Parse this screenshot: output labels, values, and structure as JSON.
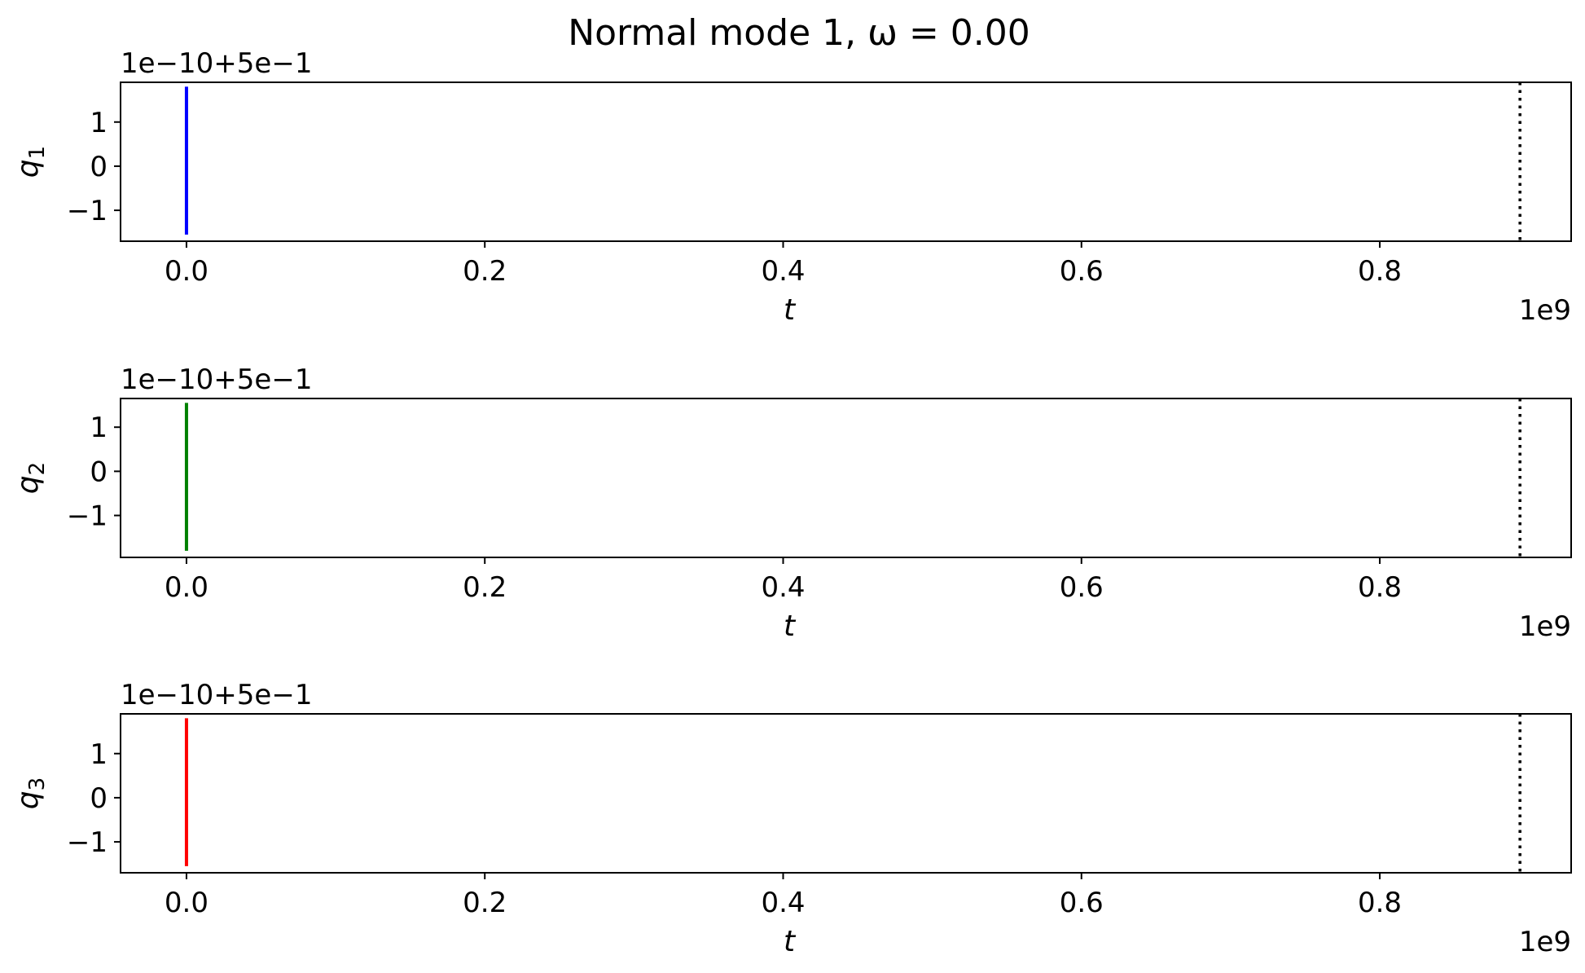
{
  "figure": {
    "title": "Normal mode 1, ω = 0.00"
  },
  "chart_data": [
    {
      "type": "line",
      "ylabel": "q",
      "ylabel_sub": "1",
      "xlabel": "t",
      "x_offset_label": "1e9",
      "y_offset_label": "1e−10+5e−1",
      "xlim": [
        -0.0442,
        0.9283
      ],
      "ylim": [
        -1.7,
        1.9
      ],
      "xticks": [
        0.0,
        0.2,
        0.4,
        0.6,
        0.8
      ],
      "xtick_labels": [
        "0.0",
        "0.2",
        "0.4",
        "0.6",
        "0.8"
      ],
      "yticks": [
        -1,
        0,
        1
      ],
      "ytick_labels": [
        "−1",
        "0",
        "1"
      ],
      "series": [
        {
          "color": "#0000ff",
          "x": [
            0.0,
            0.0
          ],
          "y": [
            -1.55,
            1.8
          ]
        }
      ],
      "vline": {
        "x": 0.894,
        "style": "dotted",
        "color": "#000000"
      }
    },
    {
      "type": "line",
      "ylabel": "q",
      "ylabel_sub": "2",
      "xlabel": "t",
      "x_offset_label": "1e9",
      "y_offset_label": "1e−10+5e−1",
      "xlim": [
        -0.0442,
        0.9283
      ],
      "ylim": [
        -1.95,
        1.65
      ],
      "xticks": [
        0.0,
        0.2,
        0.4,
        0.6,
        0.8
      ],
      "xtick_labels": [
        "0.0",
        "0.2",
        "0.4",
        "0.6",
        "0.8"
      ],
      "yticks": [
        -1,
        0,
        1
      ],
      "ytick_labels": [
        "−1",
        "0",
        "1"
      ],
      "series": [
        {
          "color": "#008000",
          "x": [
            0.0,
            0.0
          ],
          "y": [
            -1.8,
            1.55
          ]
        }
      ],
      "vline": {
        "x": 0.894,
        "style": "dotted",
        "color": "#000000"
      }
    },
    {
      "type": "line",
      "ylabel": "q",
      "ylabel_sub": "3",
      "xlabel": "t",
      "x_offset_label": "1e9",
      "y_offset_label": "1e−10+5e−1",
      "xlim": [
        -0.0442,
        0.9283
      ],
      "ylim": [
        -1.7,
        1.9
      ],
      "xticks": [
        0.0,
        0.2,
        0.4,
        0.6,
        0.8
      ],
      "xtick_labels": [
        "0.0",
        "0.2",
        "0.4",
        "0.6",
        "0.8"
      ],
      "yticks": [
        -1,
        0,
        1
      ],
      "ytick_labels": [
        "−1",
        "0",
        "1"
      ],
      "series": [
        {
          "color": "#ff0000",
          "x": [
            0.0,
            0.0
          ],
          "y": [
            -1.55,
            1.8
          ]
        }
      ],
      "vline": {
        "x": 0.894,
        "style": "dotted",
        "color": "#000000"
      }
    }
  ]
}
